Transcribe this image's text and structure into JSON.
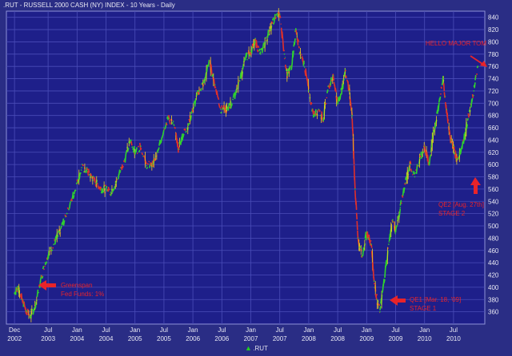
{
  "chart_data": {
    "type": "line",
    "title": ".RUT - RUSSELL 2000 CASH (NY) INDEX - 10 Years - Daily",
    "xlabel": "",
    "ylabel": "",
    "ylim": [
      340,
      850
    ],
    "y_ticks": [
      360,
      380,
      400,
      420,
      440,
      460,
      480,
      500,
      520,
      540,
      560,
      580,
      600,
      620,
      640,
      660,
      680,
      700,
      720,
      740,
      760,
      780,
      800,
      820,
      840
    ],
    "x_ticks": [
      {
        "t": 2002.92,
        "month": "Dec",
        "year": "2002"
      },
      {
        "t": 2003.5,
        "month": "Jul",
        "year": "2003"
      },
      {
        "t": 2004.0,
        "month": "Jan",
        "year": "2004"
      },
      {
        "t": 2004.5,
        "month": "Jul",
        "year": "2004"
      },
      {
        "t": 2005.0,
        "month": "Jan",
        "year": "2005"
      },
      {
        "t": 2005.5,
        "month": "Jul",
        "year": "2005"
      },
      {
        "t": 2006.0,
        "month": "Jan",
        "year": "2006"
      },
      {
        "t": 2006.5,
        "month": "Jul",
        "year": "2006"
      },
      {
        "t": 2007.0,
        "month": "Jan",
        "year": "2007"
      },
      {
        "t": 2007.5,
        "month": "Jul",
        "year": "2007"
      },
      {
        "t": 2008.0,
        "month": "Jan",
        "year": "2008"
      },
      {
        "t": 2008.5,
        "month": "Jul",
        "year": "2008"
      },
      {
        "t": 2009.0,
        "month": "Jan",
        "year": "2009"
      },
      {
        "t": 2009.5,
        "month": "Jul",
        "year": "2009"
      },
      {
        "t": 2010.0,
        "month": "Jan",
        "year": "2010"
      },
      {
        "t": 2010.5,
        "month": "Jul",
        "year": "2010"
      }
    ],
    "series": [
      {
        "name": ".RUT",
        "points": [
          [
            2002.92,
            390
          ],
          [
            2002.98,
            400
          ],
          [
            2003.05,
            380
          ],
          [
            2003.12,
            362
          ],
          [
            2003.2,
            352
          ],
          [
            2003.28,
            372
          ],
          [
            2003.37,
            410
          ],
          [
            2003.45,
            440
          ],
          [
            2003.53,
            460
          ],
          [
            2003.62,
            475
          ],
          [
            2003.7,
            490
          ],
          [
            2003.8,
            515
          ],
          [
            2003.9,
            540
          ],
          [
            2004.0,
            570
          ],
          [
            2004.08,
            595
          ],
          [
            2004.17,
            590
          ],
          [
            2004.25,
            580
          ],
          [
            2004.33,
            570
          ],
          [
            2004.42,
            560
          ],
          [
            2004.5,
            560
          ],
          [
            2004.58,
            555
          ],
          [
            2004.67,
            570
          ],
          [
            2004.75,
            590
          ],
          [
            2004.83,
            610
          ],
          [
            2004.92,
            640
          ],
          [
            2005.0,
            620
          ],
          [
            2005.1,
            630
          ],
          [
            2005.2,
            598
          ],
          [
            2005.3,
            600
          ],
          [
            2005.4,
            620
          ],
          [
            2005.5,
            660
          ],
          [
            2005.58,
            675
          ],
          [
            2005.67,
            665
          ],
          [
            2005.75,
            625
          ],
          [
            2005.83,
            650
          ],
          [
            2005.92,
            665
          ],
          [
            2006.0,
            690
          ],
          [
            2006.1,
            720
          ],
          [
            2006.2,
            735
          ],
          [
            2006.28,
            770
          ],
          [
            2006.38,
            730
          ],
          [
            2006.48,
            690
          ],
          [
            2006.58,
            690
          ],
          [
            2006.67,
            700
          ],
          [
            2006.75,
            720
          ],
          [
            2006.83,
            745
          ],
          [
            2006.92,
            775
          ],
          [
            2007.0,
            785
          ],
          [
            2007.08,
            800
          ],
          [
            2007.17,
            780
          ],
          [
            2007.25,
            800
          ],
          [
            2007.33,
            820
          ],
          [
            2007.42,
            840
          ],
          [
            2007.5,
            845
          ],
          [
            2007.58,
            780
          ],
          [
            2007.63,
            745
          ],
          [
            2007.7,
            760
          ],
          [
            2007.78,
            820
          ],
          [
            2007.85,
            780
          ],
          [
            2007.92,
            765
          ],
          [
            2008.0,
            720
          ],
          [
            2008.08,
            680
          ],
          [
            2008.17,
            690
          ],
          [
            2008.25,
            675
          ],
          [
            2008.33,
            720
          ],
          [
            2008.42,
            745
          ],
          [
            2008.5,
            700
          ],
          [
            2008.58,
            725
          ],
          [
            2008.63,
            755
          ],
          [
            2008.7,
            720
          ],
          [
            2008.75,
            680
          ],
          [
            2008.8,
            560
          ],
          [
            2008.85,
            480
          ],
          [
            2008.92,
            450
          ],
          [
            2009.0,
            490
          ],
          [
            2009.08,
            470
          ],
          [
            2009.13,
            410
          ],
          [
            2009.18,
            380
          ],
          [
            2009.23,
            360
          ],
          [
            2009.3,
            410
          ],
          [
            2009.38,
            470
          ],
          [
            2009.45,
            510
          ],
          [
            2009.5,
            490
          ],
          [
            2009.58,
            530
          ],
          [
            2009.67,
            570
          ],
          [
            2009.75,
            600
          ],
          [
            2009.83,
            580
          ],
          [
            2009.92,
            610
          ],
          [
            2010.0,
            630
          ],
          [
            2010.08,
            600
          ],
          [
            2010.17,
            660
          ],
          [
            2010.25,
            700
          ],
          [
            2010.32,
            740
          ],
          [
            2010.38,
            690
          ],
          [
            2010.45,
            640
          ],
          [
            2010.5,
            630
          ],
          [
            2010.55,
            610
          ],
          [
            2010.62,
            620
          ],
          [
            2010.7,
            650
          ],
          [
            2010.78,
            690
          ],
          [
            2010.85,
            720
          ],
          [
            2010.92,
            760
          ]
        ]
      }
    ],
    "annotations": [
      {
        "lines": [
          "HELLO MAJOR TOM"
        ],
        "arrow": "points down-right to the latest high"
      },
      {
        "lines": [
          "Greenspan",
          "Fed Funds: 1%"
        ],
        "arrow": "left"
      },
      {
        "lines": [
          "QE2 [Aug. 27th]",
          "STAGE 2"
        ],
        "arrow": "up"
      },
      {
        "lines": [
          "QE1 [Mar. 18, '09]",
          "STAGE 1"
        ],
        "arrow": "left"
      }
    ],
    "grid": true,
    "legend": "bottom"
  },
  "colors": {
    "background": "#2a2d85",
    "plot_background": "#1e1f8a",
    "grid": "#4a4db8",
    "line_up": "#2fd12f",
    "line_down": "#e0302a",
    "accent_wick": "#f0d020",
    "annotation": "#e8242a",
    "text": "#e8e8f4"
  }
}
